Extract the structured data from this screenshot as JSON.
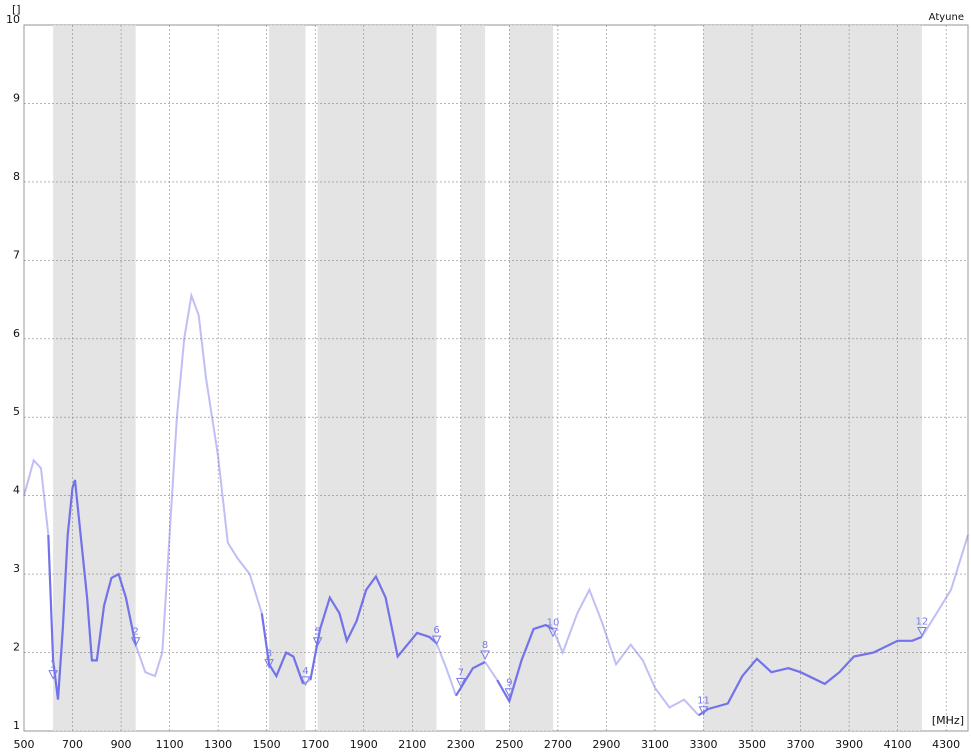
{
  "chart_data": {
    "type": "line",
    "title": "Atyune",
    "ylabel": "[]",
    "xlabel": "[MHz]",
    "xlim": [
      500,
      4390
    ],
    "ylim": [
      1,
      10
    ],
    "xticks": [
      500,
      700,
      900,
      1100,
      1300,
      1500,
      1700,
      1900,
      2100,
      2300,
      2500,
      2700,
      2900,
      3100,
      3300,
      3500,
      3700,
      3900,
      4100,
      4300
    ],
    "yticks": [
      1,
      2,
      3,
      4,
      5,
      6,
      7,
      8,
      9,
      10
    ],
    "grid": true,
    "series": [
      {
        "color": "#7272ea",
        "x": [
          500,
          540,
          570,
          600,
          620,
          640,
          660,
          680,
          700,
          710,
          730,
          760,
          780,
          800,
          830,
          860,
          890,
          920,
          960,
          1000,
          1040,
          1070,
          1100,
          1130,
          1160,
          1190,
          1220,
          1250,
          1300,
          1340,
          1380,
          1430,
          1480,
          1510,
          1540,
          1580,
          1610,
          1650,
          1680,
          1720,
          1760,
          1800,
          1830,
          1870,
          1910,
          1950,
          1990,
          2040,
          2080,
          2120,
          2170,
          2200,
          2240,
          2280,
          2310,
          2350,
          2400,
          2450,
          2500,
          2550,
          2600,
          2650,
          2680,
          2720,
          2780,
          2830,
          2880,
          2940,
          3000,
          3050,
          3100,
          3160,
          3220,
          3280,
          3320,
          3400,
          3460,
          3520,
          3580,
          3650,
          3700,
          3800,
          3860,
          3920,
          4000,
          4100,
          4160,
          4200,
          4260,
          4320,
          4390
        ],
        "values": [
          4.0,
          4.45,
          4.35,
          3.5,
          1.9,
          1.4,
          2.3,
          3.5,
          4.1,
          4.2,
          3.6,
          2.7,
          1.9,
          1.9,
          2.6,
          2.95,
          3.0,
          2.7,
          2.1,
          1.75,
          1.7,
          2.0,
          3.5,
          5.0,
          6.0,
          6.55,
          6.3,
          5.5,
          4.5,
          3.4,
          3.2,
          3.0,
          2.5,
          1.85,
          1.7,
          2.0,
          1.95,
          1.6,
          1.65,
          2.3,
          2.7,
          2.5,
          2.15,
          2.4,
          2.8,
          2.97,
          2.7,
          1.95,
          2.1,
          2.25,
          2.2,
          2.12,
          1.8,
          1.45,
          1.6,
          1.8,
          1.88,
          1.65,
          1.38,
          1.9,
          2.3,
          2.35,
          2.3,
          2.0,
          2.5,
          2.8,
          2.4,
          1.85,
          2.1,
          1.9,
          1.55,
          1.3,
          1.4,
          1.2,
          1.28,
          1.35,
          1.7,
          1.92,
          1.75,
          1.8,
          1.75,
          1.6,
          1.75,
          1.95,
          2.0,
          2.15,
          2.15,
          2.2,
          2.5,
          2.8,
          3.5
        ]
      }
    ],
    "markers": [
      {
        "label": "1",
        "x": 620,
        "y": 1.68
      },
      {
        "label": "2",
        "x": 960,
        "y": 2.1
      },
      {
        "label": "3",
        "x": 1510,
        "y": 1.82
      },
      {
        "label": "4",
        "x": 1660,
        "y": 1.6
      },
      {
        "label": "5",
        "x": 1710,
        "y": 2.1
      },
      {
        "label": "6",
        "x": 2200,
        "y": 2.12
      },
      {
        "label": "7",
        "x": 2300,
        "y": 1.58
      },
      {
        "label": "8",
        "x": 2400,
        "y": 1.93
      },
      {
        "label": "9",
        "x": 2500,
        "y": 1.45
      },
      {
        "label": "10",
        "x": 2680,
        "y": 2.22
      },
      {
        "label": "11",
        "x": 3300,
        "y": 1.22
      },
      {
        "label": "12",
        "x": 4200,
        "y": 2.23
      }
    ]
  }
}
